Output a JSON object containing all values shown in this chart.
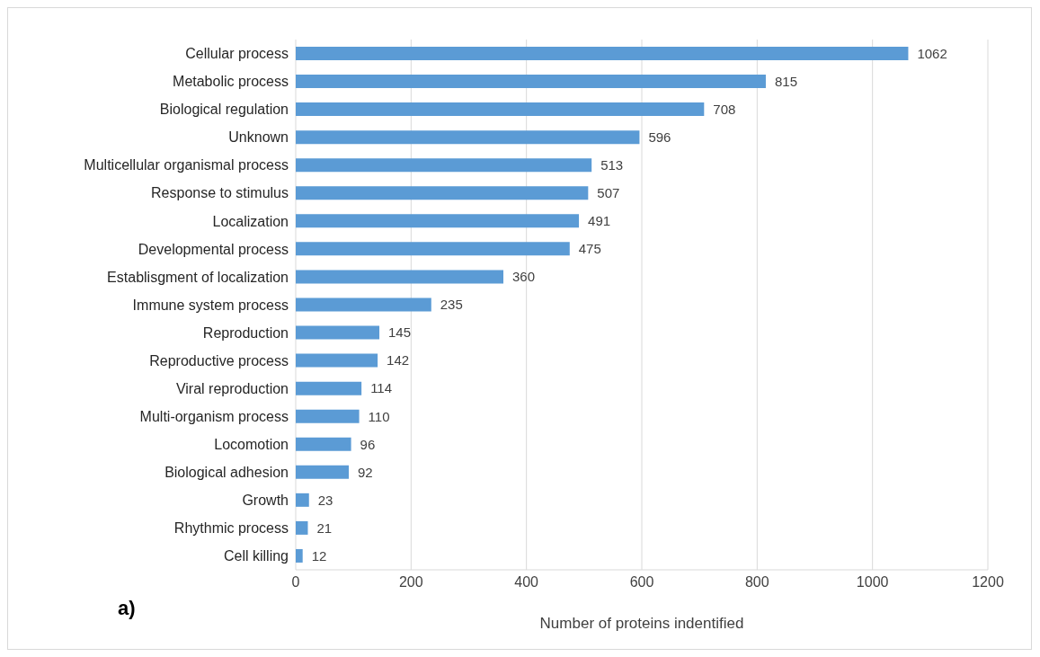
{
  "chart_data": {
    "type": "bar",
    "orientation": "horizontal",
    "categories": [
      "Cellular process",
      "Metabolic process",
      "Biological regulation",
      "Unknown",
      "Multicellular organismal process",
      "Response to stimulus",
      "Localization",
      "Developmental process",
      "Establisgment of localization",
      "Immune system process",
      "Reproduction",
      "Reproductive process",
      "Viral reproduction",
      "Multi-organism process",
      "Locomotion",
      "Biological adhesion",
      "Growth",
      "Rhythmic process",
      "Cell killing"
    ],
    "values": [
      1062,
      815,
      708,
      596,
      513,
      507,
      491,
      475,
      360,
      235,
      145,
      142,
      114,
      110,
      96,
      92,
      23,
      21,
      12
    ],
    "color": "#5b9bd5",
    "xlim": [
      0,
      1200
    ],
    "xticks": [
      0,
      200,
      400,
      600,
      800,
      1000,
      1200
    ],
    "xlabel": "Number of proteins indentified",
    "annotations": [
      "a)"
    ],
    "grid": "x",
    "data_labels": true
  }
}
